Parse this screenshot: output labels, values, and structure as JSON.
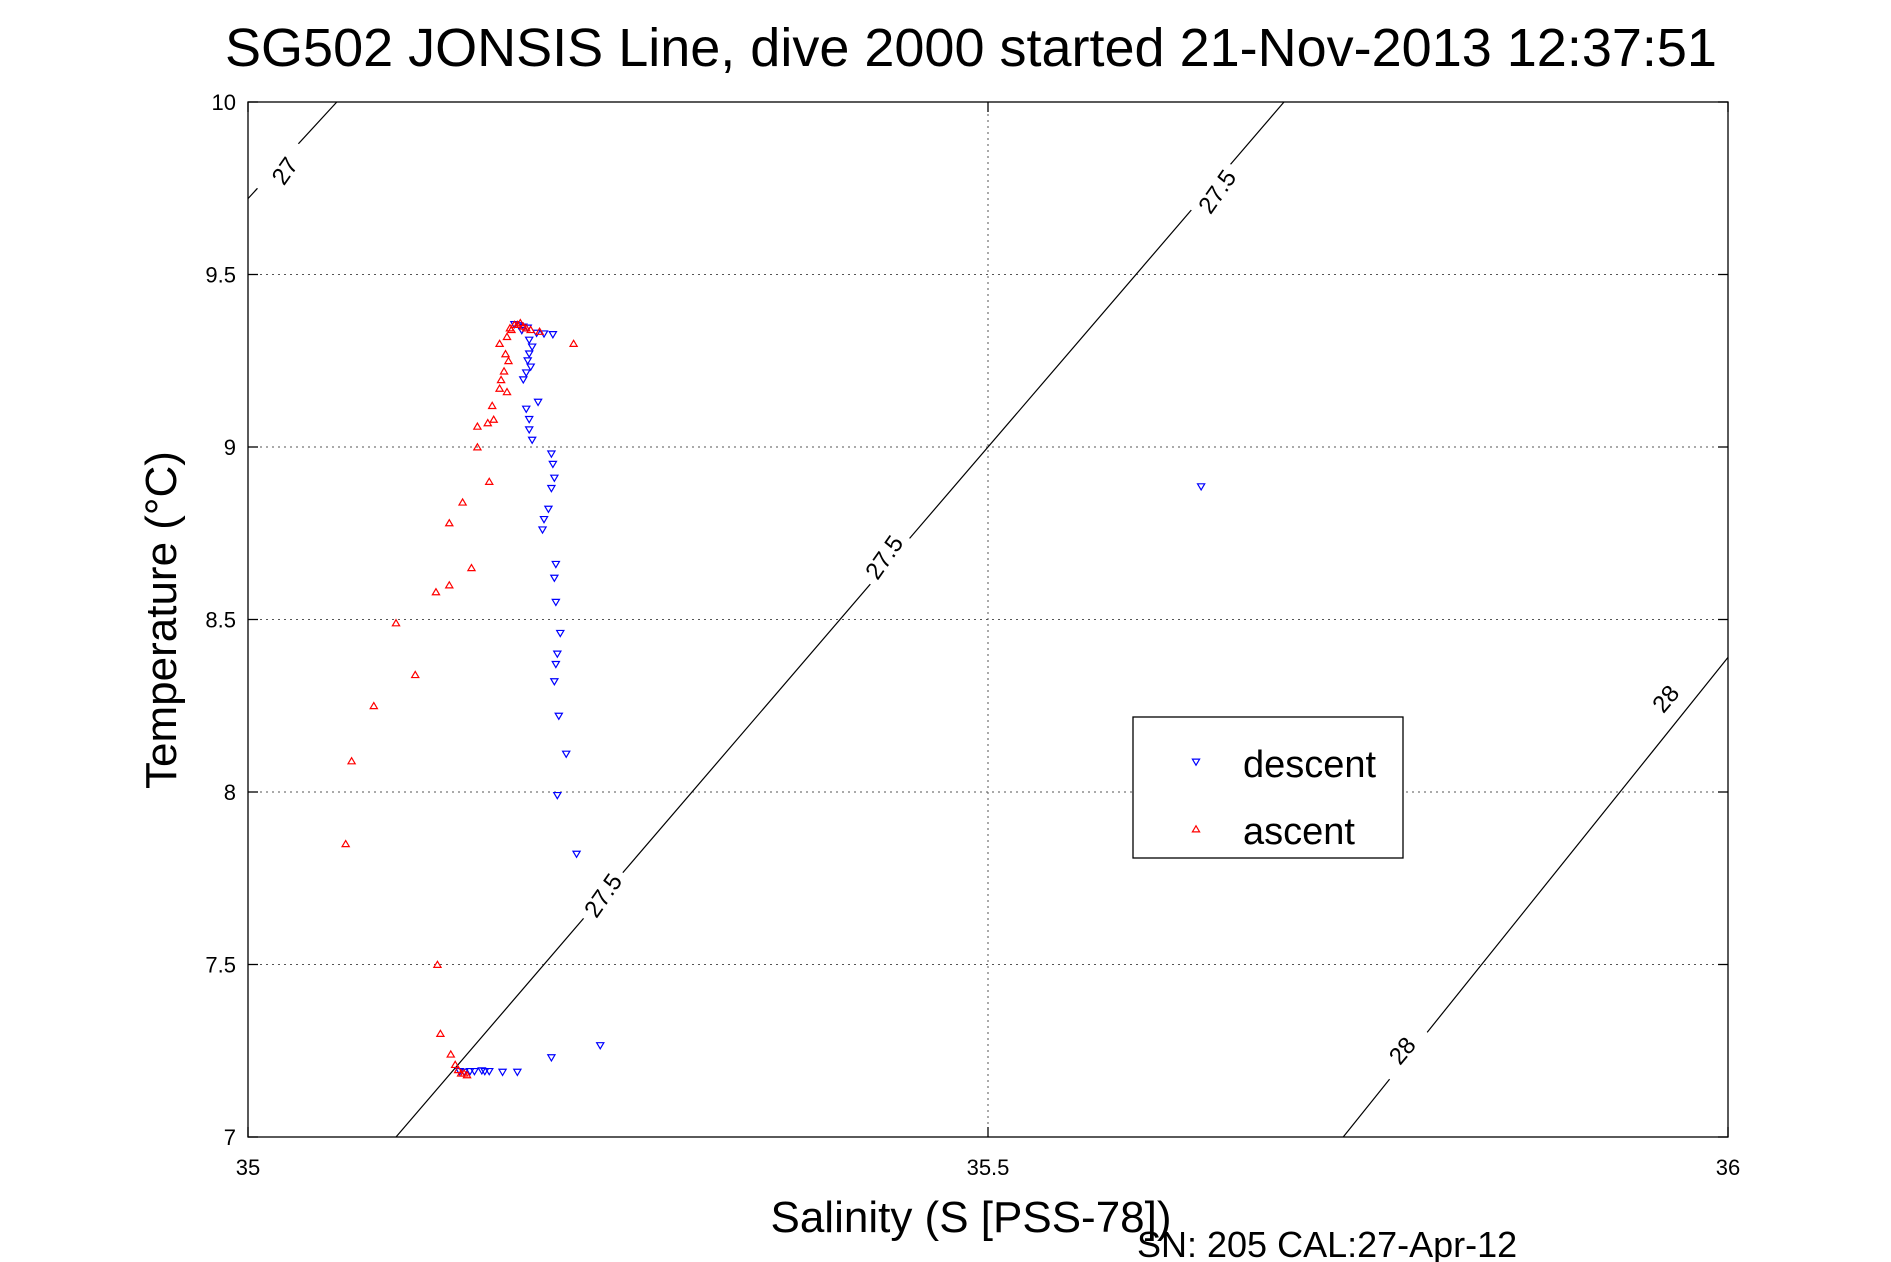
{
  "chart_data": {
    "type": "scatter",
    "title": "SG502 JONSIS Line, dive 2000 started 21-Nov-2013 12:37:51",
    "xlabel": "Salinity (S [PSS-78])",
    "ylabel": "Temperature (°C)",
    "xlim": [
      35,
      36
    ],
    "ylim": [
      7,
      10
    ],
    "x_ticks": [
      "35",
      "35.5",
      "36"
    ],
    "y_ticks": [
      "7",
      "7.5",
      "8",
      "8.5",
      "9",
      "9.5",
      "10"
    ],
    "grid": true,
    "legend_position": "right",
    "footnote": "SN: 205  CAL:27-Apr-12",
    "density_contours": [
      {
        "label": "27",
        "points": [
          [
            35.0,
            9.72
          ],
          [
            35.06,
            10.0
          ]
        ]
      },
      {
        "label": "27.5",
        "points": [
          [
            35.1,
            7.0
          ],
          [
            35.7,
            10.0
          ]
        ]
      },
      {
        "label": "28",
        "points": [
          [
            35.74,
            7.0
          ],
          [
            36.0,
            8.39
          ]
        ]
      }
    ],
    "contour_labels": [
      {
        "text": "27",
        "x": 35.025,
        "y": 9.8,
        "angle": -55
      },
      {
        "text": "27.5",
        "x": 35.655,
        "y": 9.74,
        "angle": -55
      },
      {
        "text": "27.5",
        "x": 35.43,
        "y": 8.68,
        "angle": -55
      },
      {
        "text": "27.5",
        "x": 35.24,
        "y": 7.7,
        "angle": -55
      },
      {
        "text": "28",
        "x": 35.958,
        "y": 8.27,
        "angle": -50
      },
      {
        "text": "28",
        "x": 35.78,
        "y": 7.25,
        "angle": -50
      }
    ],
    "series": [
      {
        "name": "descent",
        "color": "#0000ff",
        "marker": "triangle-down",
        "points": [
          [
            35.18,
            9.355
          ],
          [
            35.183,
            9.352
          ],
          [
            35.186,
            9.348
          ],
          [
            35.189,
            9.345
          ],
          [
            35.185,
            9.338
          ],
          [
            35.195,
            9.33
          ],
          [
            35.2,
            9.328
          ],
          [
            35.206,
            9.326
          ],
          [
            35.19,
            9.31
          ],
          [
            35.192,
            9.29
          ],
          [
            35.19,
            9.27
          ],
          [
            35.189,
            9.25
          ],
          [
            35.191,
            9.232
          ],
          [
            35.188,
            9.215
          ],
          [
            35.186,
            9.195
          ],
          [
            35.196,
            9.13
          ],
          [
            35.188,
            9.11
          ],
          [
            35.19,
            9.08
          ],
          [
            35.19,
            9.05
          ],
          [
            35.192,
            9.02
          ],
          [
            35.205,
            8.98
          ],
          [
            35.206,
            8.95
          ],
          [
            35.207,
            8.91
          ],
          [
            35.205,
            8.88
          ],
          [
            35.203,
            8.82
          ],
          [
            35.2,
            8.79
          ],
          [
            35.199,
            8.76
          ],
          [
            35.208,
            8.66
          ],
          [
            35.207,
            8.62
          ],
          [
            35.208,
            8.55
          ],
          [
            35.211,
            8.46
          ],
          [
            35.209,
            8.4
          ],
          [
            35.208,
            8.37
          ],
          [
            35.207,
            8.32
          ],
          [
            35.21,
            8.22
          ],
          [
            35.215,
            8.11
          ],
          [
            35.209,
            7.99
          ],
          [
            35.222,
            7.82
          ],
          [
            35.205,
            7.23
          ],
          [
            35.238,
            7.265
          ],
          [
            35.644,
            8.885
          ],
          [
            35.143,
            7.19
          ],
          [
            35.15,
            7.19
          ],
          [
            35.158,
            7.192
          ],
          [
            35.163,
            7.19
          ],
          [
            35.172,
            7.188
          ],
          [
            35.182,
            7.188
          ],
          [
            35.153,
            7.19
          ],
          [
            35.146,
            7.188
          ],
          [
            35.16,
            7.19
          ]
        ]
      },
      {
        "name": "ascent",
        "color": "#ff0000",
        "marker": "triangle-up",
        "points": [
          [
            35.066,
            7.85
          ],
          [
            35.07,
            8.09
          ],
          [
            35.085,
            8.25
          ],
          [
            35.1,
            8.49
          ],
          [
            35.113,
            8.34
          ],
          [
            35.127,
            8.58
          ],
          [
            35.136,
            8.6
          ],
          [
            35.151,
            8.65
          ],
          [
            35.136,
            8.78
          ],
          [
            35.145,
            8.84
          ],
          [
            35.163,
            8.9
          ],
          [
            35.155,
            9.0
          ],
          [
            35.155,
            9.06
          ],
          [
            35.162,
            9.07
          ],
          [
            35.166,
            9.08
          ],
          [
            35.165,
            9.12
          ],
          [
            35.17,
            9.17
          ],
          [
            35.171,
            9.195
          ],
          [
            35.175,
            9.16
          ],
          [
            35.173,
            9.22
          ],
          [
            35.176,
            9.25
          ],
          [
            35.174,
            9.27
          ],
          [
            35.17,
            9.3
          ],
          [
            35.175,
            9.32
          ],
          [
            35.178,
            9.34
          ],
          [
            35.182,
            9.355
          ],
          [
            35.186,
            9.35
          ],
          [
            35.188,
            9.345
          ],
          [
            35.191,
            9.34
          ],
          [
            35.197,
            9.335
          ],
          [
            35.22,
            9.3
          ],
          [
            35.18,
            9.355
          ],
          [
            35.184,
            9.36
          ],
          [
            35.177,
            9.345
          ],
          [
            35.128,
            7.5
          ],
          [
            35.13,
            7.3
          ],
          [
            35.137,
            7.24
          ],
          [
            35.14,
            7.21
          ],
          [
            35.142,
            7.195
          ],
          [
            35.144,
            7.185
          ],
          [
            35.148,
            7.18
          ],
          [
            35.146,
            7.185
          ]
        ]
      }
    ]
  }
}
